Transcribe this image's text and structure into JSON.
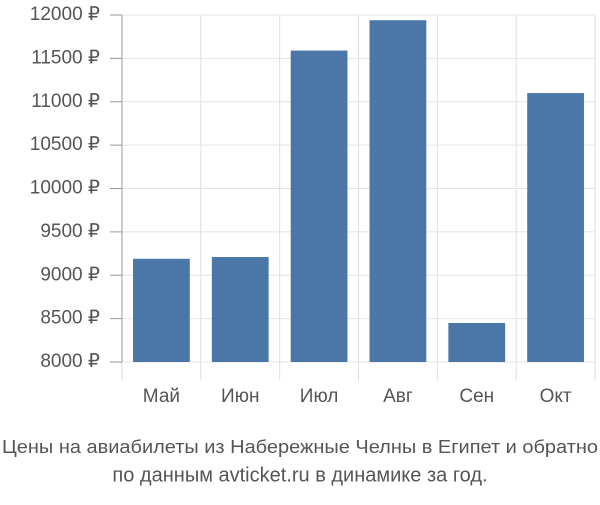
{
  "chart_data": {
    "type": "bar",
    "title": "Цены на авиабилеты из Набережные Челны в Египет и обратно",
    "subtitle": "по данным avticket.ru в динамике за год.",
    "categories": [
      "Май",
      "Июн",
      "Июл",
      "Авг",
      "Сен",
      "Окт"
    ],
    "values": [
      9190,
      9210,
      11590,
      11940,
      8450,
      11100
    ],
    "color": "#4a76a8",
    "ylim": [
      8000,
      12000
    ],
    "yticks": [
      {
        "value": 8000,
        "label": "8000 ₽"
      },
      {
        "value": 8500,
        "label": "8500 ₽"
      },
      {
        "value": 9000,
        "label": "9000 ₽"
      },
      {
        "value": 9500,
        "label": "9500 ₽"
      },
      {
        "value": 10000,
        "label": "10000 ₽"
      },
      {
        "value": 10500,
        "label": "10500 ₽"
      },
      {
        "value": 11000,
        "label": "11000 ₽"
      },
      {
        "value": 11500,
        "label": "11500 ₽"
      },
      {
        "value": 12000,
        "label": "12000 ₽"
      }
    ],
    "grid": true
  }
}
